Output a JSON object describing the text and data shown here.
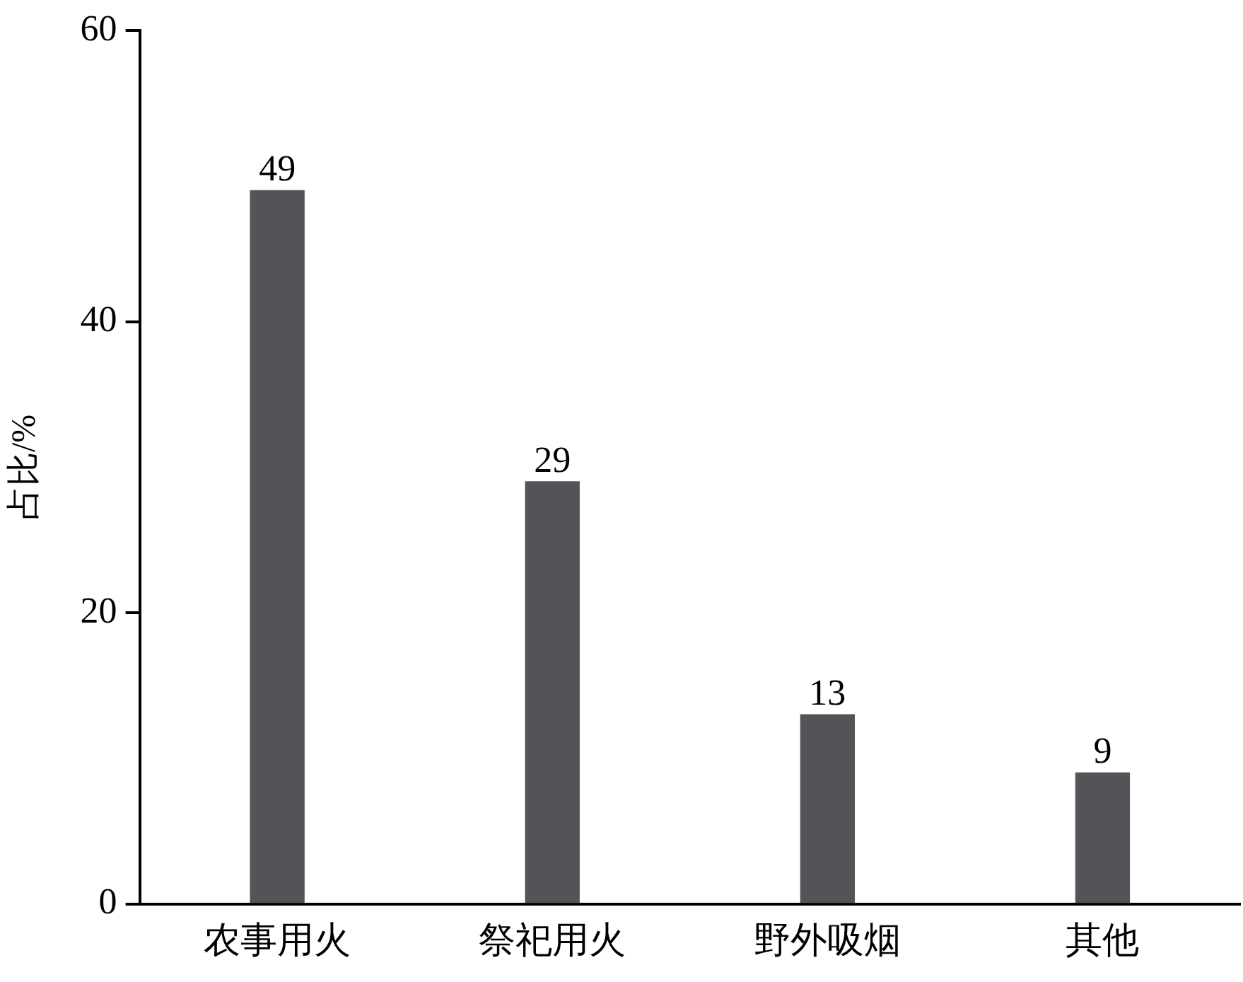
{
  "chart_data": {
    "type": "bar",
    "ylabel": "占比/%",
    "categories": [
      "农事用火",
      "祭祀用火",
      "野外吸烟",
      "其他"
    ],
    "values": [
      49,
      29,
      13,
      9
    ],
    "color": "#535458",
    "ylim": [
      0,
      60
    ],
    "yticks": [
      0,
      20,
      40,
      60
    ],
    "grid": false,
    "legend": false,
    "data_labels": true
  }
}
